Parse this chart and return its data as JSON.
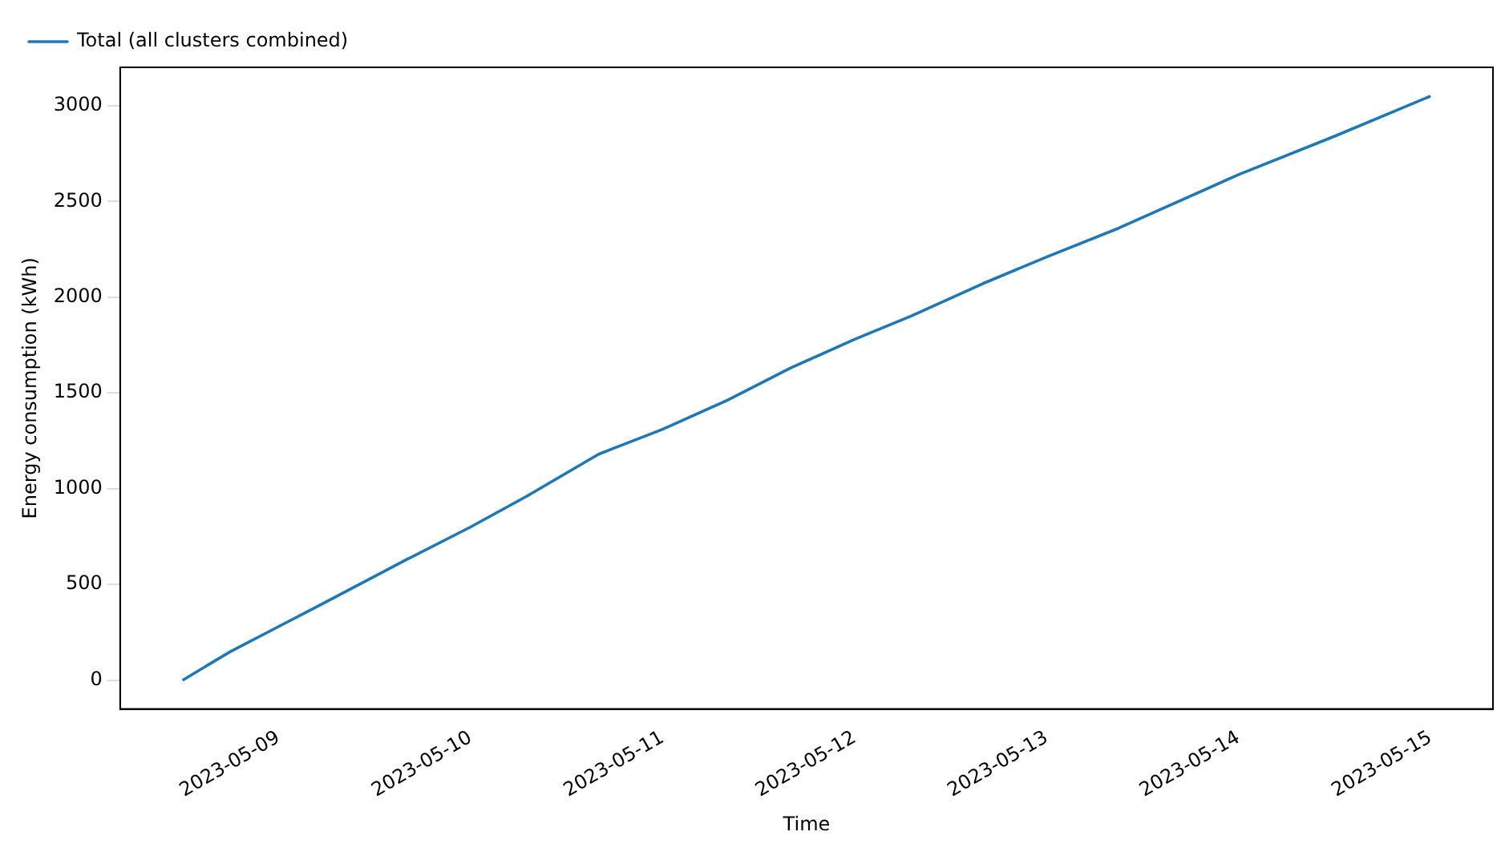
{
  "chart_data": {
    "type": "line",
    "xlabel": "Time",
    "ylabel": "Energy consumption (kWh)",
    "x": [
      "2023-05-08T12:00",
      "2023-05-08T18:00",
      "2023-05-09T00:00",
      "2023-05-09T06:00",
      "2023-05-09T16:00",
      "2023-05-10T00:00",
      "2023-05-10T07:00",
      "2023-05-10T16:00",
      "2023-05-11T00:00",
      "2023-05-11T08:00",
      "2023-05-11T16:00",
      "2023-05-12T00:00",
      "2023-05-12T07:00",
      "2023-05-12T16:00",
      "2023-05-13T00:00",
      "2023-05-13T09:00",
      "2023-05-14T00:00",
      "2023-05-14T12:00",
      "2023-05-15T00:00"
    ],
    "series": [
      {
        "name": "Total (all clusters combined)",
        "color": "#1f77b4",
        "values": [
          0,
          150,
          280,
          410,
          630,
          800,
          960,
          1180,
          1310,
          1460,
          1630,
          1780,
          1900,
          2070,
          2210,
          2360,
          2640,
          2840,
          3050
        ]
      }
    ],
    "xlim": [
      "2023-05-08T04:12",
      "2023-05-15T07:48"
    ],
    "xticks": [
      "2023-05-09",
      "2023-05-10",
      "2023-05-11",
      "2023-05-12",
      "2023-05-13",
      "2023-05-14",
      "2023-05-15"
    ],
    "ylim": [
      -150,
      3200
    ],
    "yticks": [
      0,
      500,
      1000,
      1500,
      2000,
      2500,
      3000
    ],
    "grid": false,
    "legend": "top left",
    "marker": "none",
    "line_style": "solid"
  }
}
